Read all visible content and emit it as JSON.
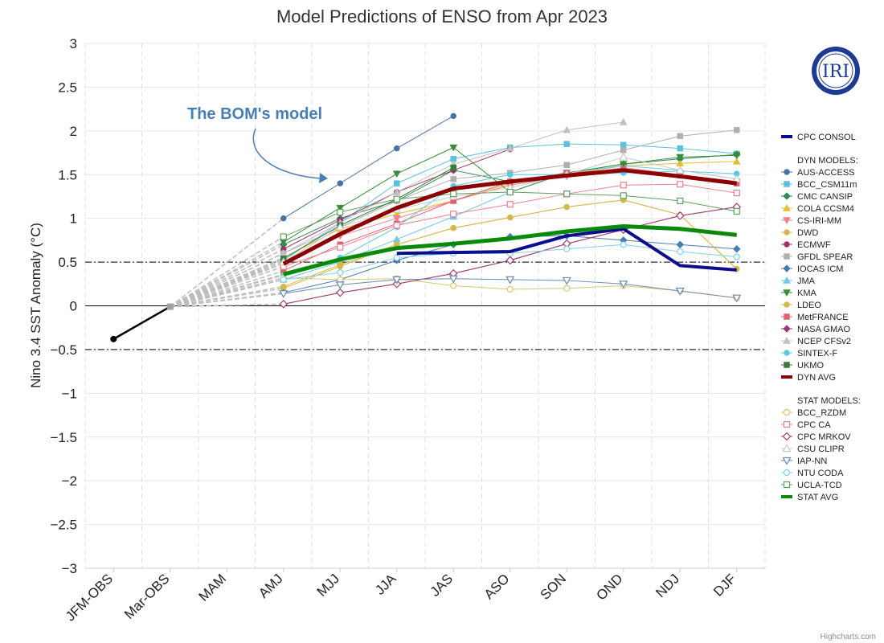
{
  "chart_data": {
    "type": "line",
    "title": "Model Predictions of ENSO from Apr 2023",
    "ylabel": "Nino 3.4 SST Anomaly (°C)",
    "ylim": [
      -3,
      3
    ],
    "yticks": [
      3,
      2.5,
      2,
      1.5,
      1,
      0.5,
      0,
      -0.5,
      -1,
      -1.5,
      -2,
      -2.5,
      -3
    ],
    "ytick_labels": [
      "3",
      "2.5",
      "2",
      "1.5",
      "1",
      "0.5",
      "0",
      "−0.5",
      "−1",
      "−1.5",
      "−2",
      "−2.5",
      "−3"
    ],
    "categories": [
      "JFM-OBS",
      "Mar-OBS",
      "MAM",
      "AMJ",
      "MJJ",
      "JJA",
      "JAS",
      "ASO",
      "SON",
      "OND",
      "NDJ",
      "DJF"
    ],
    "reference_lines": [
      0.5,
      -0.5
    ],
    "grid": true,
    "legend_position": "right",
    "annotation": "The BOM's model",
    "credit": "Highcharts.com",
    "logo": "IRI",
    "observed": [
      {
        "x": "JFM-OBS",
        "y": -0.38
      },
      {
        "x": "Mar-OBS",
        "y": -0.01
      }
    ],
    "legend_groups": [
      "DYN MODELS:",
      "STAT MODELS:"
    ],
    "series": [
      {
        "name": "CPC CONSOL",
        "group": "",
        "color": "#0b0d8c",
        "marker": "none",
        "width": 4,
        "values": [
          null,
          -0.01,
          null,
          null,
          null,
          0.6,
          0.61,
          0.62,
          0.8,
          0.88,
          0.46,
          0.41
        ]
      },
      {
        "name": "AUS-ACCESS",
        "group": "dyn",
        "color": "#4572a7",
        "marker": "circle",
        "width": 1,
        "values": [
          null,
          -0.01,
          null,
          1.0,
          1.4,
          1.8,
          2.17,
          null,
          null,
          null,
          null,
          null
        ]
      },
      {
        "name": "BCC_CSM11m",
        "group": "dyn",
        "color": "#5bc0de",
        "marker": "square",
        "width": 1,
        "values": [
          null,
          -0.01,
          null,
          0.52,
          0.95,
          1.4,
          1.68,
          1.81,
          1.85,
          1.84,
          1.8,
          1.74
        ]
      },
      {
        "name": "CMC CANSIP",
        "group": "dyn",
        "color": "#2e8b57",
        "marker": "diamond",
        "width": 1,
        "values": [
          null,
          -0.01,
          null,
          0.7,
          1.0,
          1.2,
          1.55,
          1.42,
          1.52,
          1.62,
          1.68,
          1.73
        ]
      },
      {
        "name": "COLA CCSM4",
        "group": "dyn",
        "color": "#e0c030",
        "marker": "triangle",
        "width": 1,
        "values": [
          null,
          -0.01,
          null,
          0.55,
          0.88,
          1.05,
          1.2,
          1.4,
          1.5,
          1.6,
          1.63,
          1.65
        ]
      },
      {
        "name": "CS-IRI-MM",
        "group": "dyn",
        "color": "#ef7f8f",
        "marker": "triangle-down",
        "width": 1,
        "values": [
          null,
          -0.01,
          null,
          0.5,
          0.8,
          1.0,
          1.2,
          1.38,
          1.48,
          1.58,
          1.5,
          1.42
        ]
      },
      {
        "name": "DWD",
        "group": "dyn",
        "color": "#d4b84a",
        "marker": "circle",
        "width": 1,
        "values": [
          null,
          -0.01,
          null,
          0.2,
          0.45,
          0.7,
          0.89,
          1.01,
          1.13,
          1.21,
          1.04,
          0.42
        ]
      },
      {
        "name": "ECMWF",
        "group": "dyn",
        "color": "#a0306a",
        "marker": "circle",
        "width": 1,
        "values": [
          null,
          -0.01,
          null,
          0.65,
          0.98,
          1.3,
          1.55,
          1.79,
          null,
          null,
          null,
          null
        ]
      },
      {
        "name": "GFDL SPEAR",
        "group": "dyn",
        "color": "#b0b0b0",
        "marker": "square",
        "width": 1,
        "values": [
          null,
          -0.01,
          null,
          0.6,
          0.9,
          1.2,
          1.45,
          1.52,
          1.61,
          1.78,
          1.94,
          2.01
        ]
      },
      {
        "name": "IOCAS ICM",
        "group": "dyn",
        "color": "#4a7cb0",
        "marker": "diamond",
        "width": 1,
        "values": [
          null,
          -0.01,
          null,
          0.15,
          0.3,
          0.52,
          0.7,
          0.79,
          0.8,
          0.75,
          0.7,
          0.65
        ]
      },
      {
        "name": "JMA",
        "group": "dyn",
        "color": "#70c8e8",
        "marker": "triangle",
        "width": 1,
        "values": [
          null,
          -0.01,
          null,
          0.3,
          0.5,
          0.76,
          1.02,
          1.3,
          1.52,
          1.6,
          1.55,
          1.45
        ]
      },
      {
        "name": "KMA",
        "group": "dyn",
        "color": "#3a8a3a",
        "marker": "triangle-down",
        "width": 1,
        "values": [
          null,
          -0.01,
          null,
          0.73,
          1.12,
          1.51,
          1.81,
          1.3,
          1.52,
          1.62,
          1.7,
          1.72
        ]
      },
      {
        "name": "LDEO",
        "group": "dyn",
        "color": "#d4b84a",
        "marker": "circle",
        "width": 1,
        "values": [
          null,
          -0.01,
          null,
          0.22,
          0.47,
          0.7,
          0.89,
          1.01,
          1.13,
          1.21,
          1.04,
          0.42
        ]
      },
      {
        "name": "MetFRANCE",
        "group": "dyn",
        "color": "#e06070",
        "marker": "square",
        "width": 1,
        "values": [
          null,
          -0.01,
          null,
          0.4,
          0.7,
          0.94,
          1.2,
          1.42,
          1.52,
          1.56,
          1.49,
          1.4
        ]
      },
      {
        "name": "NASA GMAO",
        "group": "dyn",
        "color": "#9a3a7a",
        "marker": "diamond",
        "width": 1,
        "values": [
          null,
          -0.01,
          null,
          0.02,
          0.15,
          0.25,
          0.37,
          0.52,
          0.71,
          0.87,
          1.03,
          1.13
        ]
      },
      {
        "name": "NCEP CFSv2",
        "group": "dyn",
        "color": "#c0c0c0",
        "marker": "triangle",
        "width": 1,
        "values": [
          null,
          -0.01,
          null,
          0.6,
          0.95,
          1.3,
          1.62,
          1.8,
          2.01,
          2.1,
          null,
          null
        ]
      },
      {
        "name": "SINTEX-F",
        "group": "dyn",
        "color": "#5ac8e0",
        "marker": "circle",
        "width": 1,
        "values": [
          null,
          -0.01,
          null,
          0.35,
          0.55,
          0.9,
          1.37,
          1.5,
          1.5,
          1.52,
          1.54,
          1.51
        ]
      },
      {
        "name": "UKMO",
        "group": "dyn",
        "color": "#3a7a3a",
        "marker": "square",
        "width": 1,
        "values": [
          null,
          -0.01,
          null,
          0.54,
          0.92,
          1.22,
          1.58,
          null,
          null,
          null,
          null,
          null
        ]
      },
      {
        "name": "DYN AVG",
        "group": "dyn",
        "color": "#8b0000",
        "marker": "none",
        "width": 5,
        "values": [
          null,
          -0.01,
          null,
          0.48,
          0.82,
          1.12,
          1.34,
          1.42,
          1.49,
          1.55,
          1.48,
          1.4
        ]
      },
      {
        "name": "BCC_RZDM",
        "group": "stat",
        "color": "#d8c870",
        "marker": "circle-open",
        "width": 1,
        "values": [
          null,
          -0.01,
          null,
          0.32,
          0.3,
          0.31,
          0.23,
          0.19,
          0.2,
          0.23,
          0.17,
          0.09
        ]
      },
      {
        "name": "CPC CA",
        "group": "stat",
        "color": "#e88090",
        "marker": "square-open",
        "width": 1,
        "values": [
          null,
          -0.01,
          null,
          0.45,
          0.67,
          0.92,
          1.05,
          1.16,
          1.28,
          1.38,
          1.39,
          1.29
        ]
      },
      {
        "name": "CPC MRKOV",
        "group": "stat",
        "color": "#a04070",
        "marker": "diamond-open",
        "width": 1,
        "values": [
          null,
          -0.01,
          null,
          0.02,
          0.15,
          0.25,
          0.37,
          0.52,
          0.71,
          0.87,
          1.03,
          1.13
        ]
      },
      {
        "name": "CSU CLIPR",
        "group": "stat",
        "color": "#c8c8c8",
        "marker": "triangle-open",
        "width": 1,
        "values": [
          null,
          -0.01,
          null,
          0.5,
          0.9,
          1.1,
          1.25,
          1.35,
          1.5,
          1.7,
          1.55,
          1.45
        ]
      },
      {
        "name": "IAP-NN",
        "group": "stat",
        "color": "#6a8ab0",
        "marker": "triangle-down-open",
        "width": 1,
        "values": [
          null,
          -0.01,
          null,
          0.14,
          0.24,
          0.3,
          0.31,
          0.3,
          0.29,
          0.25,
          0.17,
          0.09
        ]
      },
      {
        "name": "NTU CODA",
        "group": "stat",
        "color": "#80d0e8",
        "marker": "circle-open",
        "width": 1,
        "values": [
          null,
          -0.01,
          null,
          0.3,
          0.38,
          0.55,
          0.6,
          0.6,
          0.65,
          0.7,
          0.62,
          0.56
        ]
      },
      {
        "name": "UCLA-TCD",
        "group": "stat",
        "color": "#60a060",
        "marker": "square-open",
        "width": 1,
        "values": [
          null,
          -0.01,
          null,
          0.79,
          1.07,
          1.22,
          1.28,
          1.3,
          1.28,
          1.26,
          1.2,
          1.08
        ]
      },
      {
        "name": "STAT AVG",
        "group": "stat",
        "color": "#0a8a0a",
        "marker": "none",
        "width": 5,
        "values": [
          null,
          -0.01,
          null,
          0.36,
          0.53,
          0.66,
          0.71,
          0.77,
          0.85,
          0.91,
          0.88,
          0.81
        ]
      }
    ]
  }
}
